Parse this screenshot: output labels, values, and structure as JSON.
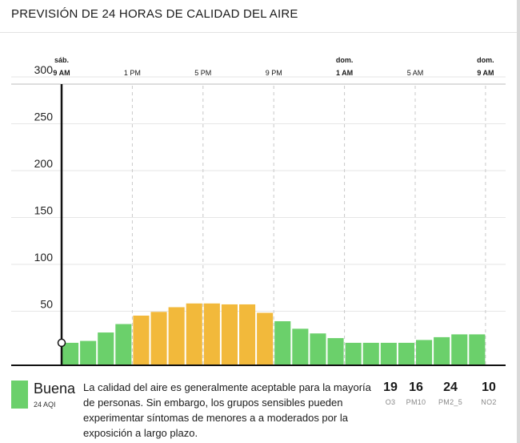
{
  "title": "PREVISIÓN DE 24 HORAS DE CALIDAD DEL AIRE",
  "colors": {
    "good": "#6bd06b",
    "moderate": "#f2b93b",
    "grid": "#c8c8c8",
    "current_line": "#111111"
  },
  "chart_data": {
    "type": "bar",
    "ylim": [
      0,
      300
    ],
    "yticks": [
      50,
      100,
      150,
      200,
      250,
      300
    ],
    "x_ticks": [
      {
        "hour_index": 0,
        "day": "sáb.",
        "label": "9 AM",
        "bold": true
      },
      {
        "hour_index": 4,
        "day": "",
        "label": "1 PM",
        "bold": false
      },
      {
        "hour_index": 8,
        "day": "",
        "label": "5 PM",
        "bold": false
      },
      {
        "hour_index": 12,
        "day": "",
        "label": "9 PM",
        "bold": false
      },
      {
        "hour_index": 16,
        "day": "dom.",
        "label": "1 AM",
        "bold": true
      },
      {
        "hour_index": 20,
        "day": "",
        "label": "5 AM",
        "bold": false
      },
      {
        "hour_index": 24,
        "day": "dom.",
        "label": "9 AM",
        "bold": true
      }
    ],
    "current_value": 24,
    "values": [
      24,
      26,
      35,
      44,
      53,
      57,
      62,
      66,
      66,
      65,
      65,
      56,
      47,
      39,
      34,
      29,
      24,
      24,
      24,
      24,
      27,
      30,
      33,
      33
    ],
    "categories_per_bar": [
      "good",
      "good",
      "good",
      "good",
      "moderate",
      "moderate",
      "moderate",
      "moderate",
      "moderate",
      "moderate",
      "moderate",
      "moderate",
      "good",
      "good",
      "good",
      "good",
      "good",
      "good",
      "good",
      "good",
      "good",
      "good",
      "good",
      "good"
    ]
  },
  "footer": {
    "category": "Buena",
    "aqi": "24 AQI",
    "description": "La calidad del aire es generalmente aceptable para la mayoría de personas. Sin embargo, los grupos sensibles pueden experimentar síntomas de menores a a moderados por la exposición a largo plazo.",
    "pollutants": [
      {
        "value": "19",
        "name": "O3"
      },
      {
        "value": "16",
        "name": "PM10"
      },
      {
        "value": "24",
        "name": "PM2_5"
      },
      {
        "value": "10",
        "name": "NO2"
      }
    ]
  }
}
